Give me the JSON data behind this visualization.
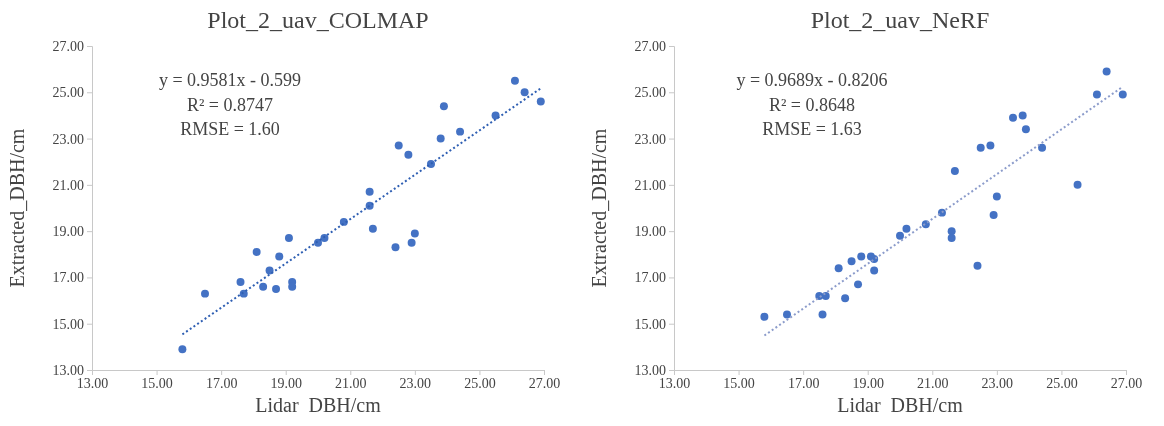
{
  "chart_data": [
    {
      "type": "scatter",
      "title": "Plot_2_uav_COLMAP",
      "xlabel": "Lidar  DBH/cm",
      "ylabel": "Extracted_DBH/cm",
      "grid": false,
      "xlim": [
        13,
        27
      ],
      "ylim": [
        13,
        27
      ],
      "xticks": [
        {
          "value": 13,
          "label": "13.00"
        },
        {
          "value": 15,
          "label": "15.00"
        },
        {
          "value": 17,
          "label": "17.00"
        },
        {
          "value": 19,
          "label": "19.00"
        },
        {
          "value": 21,
          "label": "21.00"
        },
        {
          "value": 23,
          "label": "23.00"
        },
        {
          "value": 25,
          "label": "25.00"
        },
        {
          "value": 27,
          "label": "27.00"
        }
      ],
      "yticks": [
        {
          "value": 13,
          "label": "13.00"
        },
        {
          "value": 15,
          "label": "15.00"
        },
        {
          "value": 17,
          "label": "17.00"
        },
        {
          "value": 19,
          "label": "19.00"
        },
        {
          "value": 21,
          "label": "21.00"
        },
        {
          "value": 23,
          "label": "23.00"
        },
        {
          "value": 25,
          "label": "25.00"
        },
        {
          "value": 27,
          "label": "27.00"
        }
      ],
      "annotations": [
        "y = 0.9581x - 0.599",
        "R² = 0.8747",
        "RMSE = 1.60"
      ],
      "series": [
        {
          "type": "scatter",
          "color": "#4472c4",
          "marker": "circle",
          "x": [
            15.8,
            16.5,
            17.6,
            17.7,
            18.1,
            18.3,
            18.5,
            18.7,
            18.8,
            19.1,
            19.2,
            19.2,
            20.0,
            20.2,
            20.8,
            21.6,
            21.6,
            21.7,
            22.4,
            22.5,
            22.8,
            22.9,
            23.0,
            23.5,
            23.8,
            23.9,
            24.4,
            25.5,
            26.1,
            26.4,
            26.9
          ],
          "values": [
            13.9,
            16.3,
            16.8,
            16.3,
            18.1,
            16.6,
            17.3,
            16.5,
            17.9,
            18.7,
            16.8,
            16.6,
            18.5,
            18.7,
            19.4,
            20.7,
            20.1,
            19.1,
            18.3,
            22.7,
            22.3,
            18.5,
            18.9,
            21.9,
            23.0,
            24.4,
            23.3,
            24.0,
            25.5,
            25.0,
            24.6
          ]
        },
        {
          "type": "line",
          "color": "#2f5fb3",
          "line_style": "dotted",
          "marker": "none",
          "x": [
            15.8,
            26.9
          ],
          "values": [
            14.54,
            25.17
          ]
        }
      ]
    },
    {
      "type": "scatter",
      "title": "Plot_2_uav_NeRF",
      "xlabel": "Lidar  DBH/cm",
      "ylabel": "Extracted_DBH/cm",
      "grid": false,
      "xlim": [
        13,
        27
      ],
      "ylim": [
        13,
        27
      ],
      "xticks": [
        {
          "value": 13,
          "label": "13.00"
        },
        {
          "value": 15,
          "label": "15.00"
        },
        {
          "value": 17,
          "label": "17.00"
        },
        {
          "value": 19,
          "label": "19.00"
        },
        {
          "value": 21,
          "label": "21.00"
        },
        {
          "value": 23,
          "label": "23.00"
        },
        {
          "value": 25,
          "label": "25.00"
        },
        {
          "value": 27,
          "label": "27.00"
        }
      ],
      "yticks": [
        {
          "value": 13,
          "label": "13.00"
        },
        {
          "value": 15,
          "label": "15.00"
        },
        {
          "value": 17,
          "label": "17.00"
        },
        {
          "value": 19,
          "label": "19.00"
        },
        {
          "value": 21,
          "label": "21.00"
        },
        {
          "value": 23,
          "label": "23.00"
        },
        {
          "value": 25,
          "label": "25.00"
        },
        {
          "value": 27,
          "label": "27.00"
        }
      ],
      "annotations": [
        "y = 0.9689x - 0.8206",
        "R² = 0.8648",
        "RMSE = 1.63"
      ],
      "series": [
        {
          "type": "scatter",
          "color": "#4472c4",
          "marker": "circle",
          "x": [
            15.8,
            16.5,
            17.6,
            17.5,
            17.7,
            18.1,
            18.3,
            18.5,
            18.7,
            18.8,
            19.1,
            19.2,
            19.2,
            20.0,
            20.2,
            20.8,
            21.3,
            21.6,
            21.6,
            21.7,
            22.4,
            22.5,
            22.8,
            22.9,
            23.0,
            23.5,
            23.8,
            23.9,
            24.4,
            25.5,
            26.1,
            26.4,
            26.9
          ],
          "values": [
            15.3,
            15.4,
            15.4,
            16.2,
            16.2,
            17.4,
            16.1,
            17.7,
            16.7,
            17.9,
            17.9,
            17.8,
            17.3,
            18.8,
            19.1,
            19.3,
            19.8,
            19.0,
            18.7,
            21.6,
            17.5,
            22.6,
            22.7,
            19.7,
            20.5,
            23.9,
            24.0,
            23.4,
            22.6,
            21.0,
            24.9,
            25.9,
            24.9
          ]
        },
        {
          "type": "line",
          "color": "#8c9ccb",
          "line_style": "dotted",
          "marker": "none",
          "x": [
            15.8,
            26.9
          ],
          "values": [
            14.49,
            25.24
          ]
        }
      ]
    }
  ]
}
